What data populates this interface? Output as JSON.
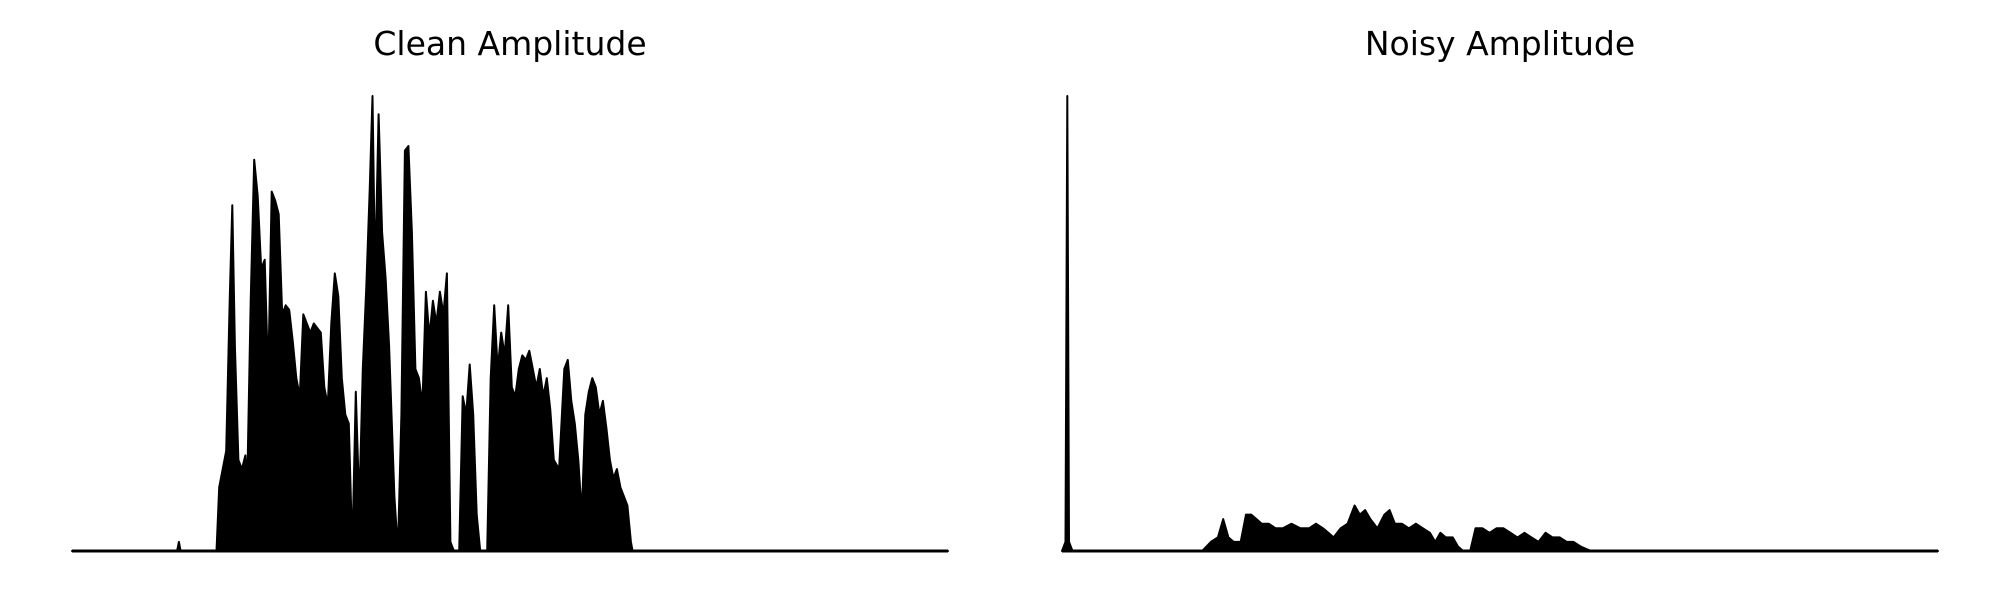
{
  "chart_data": [
    {
      "type": "area",
      "title": "Clean Amplitude",
      "xlabel": "",
      "ylabel": "",
      "axes_visible": false,
      "color": "#000000",
      "normalized_envelope": [
        [
          0.0,
          0.0
        ],
        [
          0.12,
          0.0
        ],
        [
          0.122,
          0.02
        ],
        [
          0.124,
          0.0
        ],
        [
          0.165,
          0.0
        ],
        [
          0.168,
          0.14
        ],
        [
          0.172,
          0.18
        ],
        [
          0.176,
          0.22
        ],
        [
          0.18,
          0.55
        ],
        [
          0.183,
          0.76
        ],
        [
          0.186,
          0.45
        ],
        [
          0.19,
          0.2
        ],
        [
          0.194,
          0.18
        ],
        [
          0.198,
          0.21
        ],
        [
          0.2,
          0.14
        ],
        [
          0.204,
          0.55
        ],
        [
          0.208,
          0.86
        ],
        [
          0.212,
          0.78
        ],
        [
          0.216,
          0.62
        ],
        [
          0.22,
          0.64
        ],
        [
          0.224,
          0.38
        ],
        [
          0.228,
          0.79
        ],
        [
          0.232,
          0.77
        ],
        [
          0.236,
          0.74
        ],
        [
          0.24,
          0.52
        ],
        [
          0.244,
          0.54
        ],
        [
          0.248,
          0.53
        ],
        [
          0.252,
          0.46
        ],
        [
          0.256,
          0.38
        ],
        [
          0.26,
          0.34
        ],
        [
          0.264,
          0.52
        ],
        [
          0.268,
          0.5
        ],
        [
          0.272,
          0.48
        ],
        [
          0.276,
          0.5
        ],
        [
          0.28,
          0.49
        ],
        [
          0.284,
          0.48
        ],
        [
          0.288,
          0.36
        ],
        [
          0.292,
          0.32
        ],
        [
          0.296,
          0.5
        ],
        [
          0.3,
          0.61
        ],
        [
          0.304,
          0.56
        ],
        [
          0.308,
          0.38
        ],
        [
          0.312,
          0.3
        ],
        [
          0.316,
          0.28
        ],
        [
          0.32,
          0.0
        ],
        [
          0.324,
          0.35
        ],
        [
          0.328,
          0.1
        ],
        [
          0.332,
          0.4
        ],
        [
          0.336,
          0.58
        ],
        [
          0.34,
          0.8
        ],
        [
          0.343,
          1.0
        ],
        [
          0.346,
          0.6
        ],
        [
          0.35,
          0.96
        ],
        [
          0.354,
          0.7
        ],
        [
          0.358,
          0.6
        ],
        [
          0.362,
          0.45
        ],
        [
          0.368,
          0.12
        ],
        [
          0.372,
          0.0
        ],
        [
          0.376,
          0.3
        ],
        [
          0.38,
          0.88
        ],
        [
          0.384,
          0.89
        ],
        [
          0.388,
          0.7
        ],
        [
          0.392,
          0.4
        ],
        [
          0.396,
          0.38
        ],
        [
          0.4,
          0.32
        ],
        [
          0.404,
          0.57
        ],
        [
          0.408,
          0.47
        ],
        [
          0.412,
          0.55
        ],
        [
          0.416,
          0.5
        ],
        [
          0.42,
          0.57
        ],
        [
          0.424,
          0.52
        ],
        [
          0.428,
          0.61
        ],
        [
          0.432,
          0.02
        ],
        [
          0.436,
          0.0
        ],
        [
          0.442,
          0.0
        ],
        [
          0.446,
          0.34
        ],
        [
          0.45,
          0.3
        ],
        [
          0.454,
          0.41
        ],
        [
          0.458,
          0.3
        ],
        [
          0.462,
          0.08
        ],
        [
          0.466,
          0.0
        ],
        [
          0.474,
          0.0
        ],
        [
          0.478,
          0.38
        ],
        [
          0.482,
          0.54
        ],
        [
          0.486,
          0.4
        ],
        [
          0.49,
          0.48
        ],
        [
          0.494,
          0.43
        ],
        [
          0.498,
          0.54
        ],
        [
          0.502,
          0.36
        ],
        [
          0.506,
          0.34
        ],
        [
          0.51,
          0.4
        ],
        [
          0.514,
          0.43
        ],
        [
          0.518,
          0.42
        ],
        [
          0.522,
          0.44
        ],
        [
          0.526,
          0.4
        ],
        [
          0.53,
          0.36
        ],
        [
          0.534,
          0.4
        ],
        [
          0.538,
          0.34
        ],
        [
          0.542,
          0.38
        ],
        [
          0.546,
          0.31
        ],
        [
          0.55,
          0.2
        ],
        [
          0.556,
          0.18
        ],
        [
          0.562,
          0.4
        ],
        [
          0.566,
          0.42
        ],
        [
          0.57,
          0.33
        ],
        [
          0.574,
          0.28
        ],
        [
          0.578,
          0.2
        ],
        [
          0.582,
          0.08
        ],
        [
          0.586,
          0.3
        ],
        [
          0.59,
          0.35
        ],
        [
          0.594,
          0.38
        ],
        [
          0.598,
          0.36
        ],
        [
          0.602,
          0.3
        ],
        [
          0.606,
          0.33
        ],
        [
          0.61,
          0.27
        ],
        [
          0.614,
          0.2
        ],
        [
          0.618,
          0.16
        ],
        [
          0.622,
          0.18
        ],
        [
          0.626,
          0.14
        ],
        [
          0.63,
          0.12
        ],
        [
          0.634,
          0.1
        ],
        [
          0.638,
          0.02
        ],
        [
          0.64,
          0.0
        ],
        [
          1.0,
          0.0
        ]
      ]
    },
    {
      "type": "area",
      "title": "Noisy Amplitude",
      "xlabel": "",
      "ylabel": "",
      "axes_visible": false,
      "color": "#000000",
      "normalized_envelope": [
        [
          0.0,
          0.0
        ],
        [
          0.004,
          0.02
        ],
        [
          0.006,
          1.0
        ],
        [
          0.008,
          0.02
        ],
        [
          0.012,
          0.0
        ],
        [
          0.16,
          0.0
        ],
        [
          0.17,
          0.02
        ],
        [
          0.178,
          0.03
        ],
        [
          0.184,
          0.07
        ],
        [
          0.19,
          0.03
        ],
        [
          0.196,
          0.02
        ],
        [
          0.204,
          0.02
        ],
        [
          0.21,
          0.08
        ],
        [
          0.216,
          0.08
        ],
        [
          0.222,
          0.07
        ],
        [
          0.228,
          0.06
        ],
        [
          0.236,
          0.06
        ],
        [
          0.244,
          0.05
        ],
        [
          0.252,
          0.05
        ],
        [
          0.262,
          0.06
        ],
        [
          0.272,
          0.05
        ],
        [
          0.282,
          0.05
        ],
        [
          0.29,
          0.06
        ],
        [
          0.298,
          0.05
        ],
        [
          0.304,
          0.04
        ],
        [
          0.31,
          0.03
        ],
        [
          0.318,
          0.05
        ],
        [
          0.326,
          0.06
        ],
        [
          0.334,
          0.1
        ],
        [
          0.34,
          0.08
        ],
        [
          0.346,
          0.09
        ],
        [
          0.352,
          0.07
        ],
        [
          0.36,
          0.05
        ],
        [
          0.368,
          0.08
        ],
        [
          0.374,
          0.09
        ],
        [
          0.38,
          0.06
        ],
        [
          0.388,
          0.06
        ],
        [
          0.396,
          0.05
        ],
        [
          0.404,
          0.06
        ],
        [
          0.412,
          0.05
        ],
        [
          0.42,
          0.04
        ],
        [
          0.426,
          0.02
        ],
        [
          0.432,
          0.04
        ],
        [
          0.438,
          0.03
        ],
        [
          0.446,
          0.03
        ],
        [
          0.452,
          0.01
        ],
        [
          0.458,
          0.0
        ],
        [
          0.466,
          0.0
        ],
        [
          0.472,
          0.05
        ],
        [
          0.48,
          0.05
        ],
        [
          0.488,
          0.04
        ],
        [
          0.496,
          0.05
        ],
        [
          0.504,
          0.05
        ],
        [
          0.512,
          0.04
        ],
        [
          0.52,
          0.03
        ],
        [
          0.528,
          0.04
        ],
        [
          0.536,
          0.03
        ],
        [
          0.544,
          0.02
        ],
        [
          0.552,
          0.04
        ],
        [
          0.56,
          0.03
        ],
        [
          0.568,
          0.03
        ],
        [
          0.576,
          0.02
        ],
        [
          0.584,
          0.02
        ],
        [
          0.592,
          0.01
        ],
        [
          0.604,
          0.0
        ],
        [
          1.0,
          0.0
        ]
      ]
    }
  ]
}
